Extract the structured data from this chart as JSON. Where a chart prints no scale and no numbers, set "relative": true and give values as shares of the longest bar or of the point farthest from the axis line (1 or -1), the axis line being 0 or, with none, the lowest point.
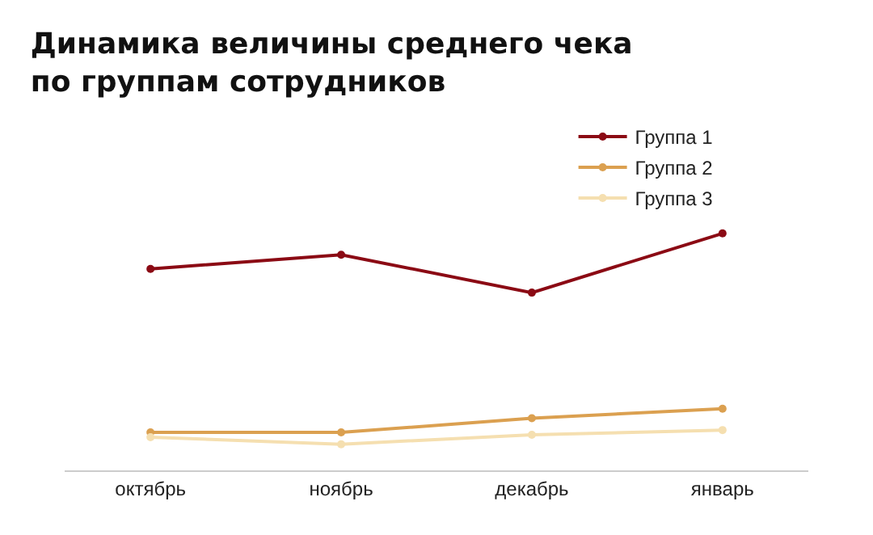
{
  "chart_data": {
    "type": "line",
    "title": "Динамика величины среднего чека\nпо группам сотрудников",
    "relative": true,
    "categories": [
      "октябрь",
      "ноябрь",
      "декабрь",
      "январь"
    ],
    "series": [
      {
        "name": "Группа 1",
        "color": "#8b0a14",
        "values": [
          0.85,
          0.91,
          0.75,
          1
        ]
      },
      {
        "name": "Группа 2",
        "color": "#dba050",
        "values": [
          0.16,
          0.16,
          0.22,
          0.26
        ]
      },
      {
        "name": "Группа 3",
        "color": "#f5dfb0",
        "values": [
          0.14,
          0.11,
          0.15,
          0.17
        ]
      }
    ],
    "marker": "circle",
    "grid": false,
    "legend": "top right"
  }
}
